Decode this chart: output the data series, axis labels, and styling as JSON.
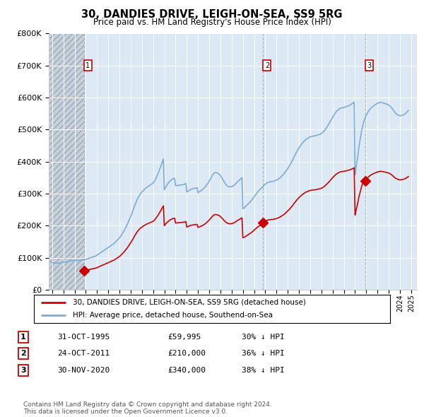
{
  "title": "30, DANDIES DRIVE, LEIGH-ON-SEA, SS9 5RG",
  "subtitle": "Price paid vs. HM Land Registry's House Price Index (HPI)",
  "legend_entry1": "30, DANDIES DRIVE, LEIGH-ON-SEA, SS9 5RG (detached house)",
  "legend_entry2": "HPI: Average price, detached house, Southend-on-Sea",
  "footnote": "Contains HM Land Registry data © Crown copyright and database right 2024.\nThis data is licensed under the Open Government Licence v3.0.",
  "sale_color": "#cc0000",
  "hpi_color": "#7dadd4",
  "vline_color": "#b0b0b0",
  "vline_color_sale": "#cc0000",
  "plot_bg": "#dce8f4",
  "hatch_bg": "#c8d0dc",
  "ylim": [
    0,
    800000
  ],
  "yticks": [
    0,
    100000,
    200000,
    300000,
    400000,
    500000,
    600000,
    700000,
    800000
  ],
  "xlim_start": 1992.7,
  "xlim_end": 2025.5,
  "sales": [
    {
      "year": 1995.83,
      "price": 59995,
      "label": "1"
    },
    {
      "year": 2011.81,
      "price": 210000,
      "label": "2"
    },
    {
      "year": 2020.92,
      "price": 340000,
      "label": "3"
    }
  ],
  "table_rows": [
    [
      "1",
      "31-OCT-1995",
      "£59,995",
      "30% ↓ HPI"
    ],
    [
      "2",
      "24-OCT-2011",
      "£210,000",
      "36% ↓ HPI"
    ],
    [
      "3",
      "30-NOV-2020",
      "£340,000",
      "38% ↓ HPI"
    ]
  ],
  "hpi_years": [
    1993.0,
    1993.08,
    1993.17,
    1993.25,
    1993.33,
    1993.42,
    1993.5,
    1993.58,
    1993.67,
    1993.75,
    1993.83,
    1993.92,
    1994.0,
    1994.08,
    1994.17,
    1994.25,
    1994.33,
    1994.42,
    1994.5,
    1994.58,
    1994.67,
    1994.75,
    1994.83,
    1994.92,
    1995.0,
    1995.08,
    1995.17,
    1995.25,
    1995.33,
    1995.42,
    1995.5,
    1995.58,
    1995.67,
    1995.75,
    1995.83,
    1995.92,
    1996.0,
    1996.08,
    1996.17,
    1996.25,
    1996.33,
    1996.42,
    1996.5,
    1996.58,
    1996.67,
    1996.75,
    1996.83,
    1996.92,
    1997.0,
    1997.08,
    1997.17,
    1997.25,
    1997.33,
    1997.42,
    1997.5,
    1997.58,
    1997.67,
    1997.75,
    1997.83,
    1997.92,
    1998.0,
    1998.08,
    1998.17,
    1998.25,
    1998.33,
    1998.42,
    1998.5,
    1998.58,
    1998.67,
    1998.75,
    1998.83,
    1998.92,
    1999.0,
    1999.08,
    1999.17,
    1999.25,
    1999.33,
    1999.42,
    1999.5,
    1999.58,
    1999.67,
    1999.75,
    1999.83,
    1999.92,
    2000.0,
    2000.08,
    2000.17,
    2000.25,
    2000.33,
    2000.42,
    2000.5,
    2000.58,
    2000.67,
    2000.75,
    2000.83,
    2000.92,
    2001.0,
    2001.08,
    2001.17,
    2001.25,
    2001.33,
    2001.42,
    2001.5,
    2001.58,
    2001.67,
    2001.75,
    2001.83,
    2001.92,
    2002.0,
    2002.08,
    2002.17,
    2002.25,
    2002.33,
    2002.42,
    2002.5,
    2002.58,
    2002.67,
    2002.75,
    2002.83,
    2002.92,
    2003.0,
    2003.08,
    2003.17,
    2003.25,
    2003.33,
    2003.42,
    2003.5,
    2003.58,
    2003.67,
    2003.75,
    2003.83,
    2003.92,
    2004.0,
    2004.08,
    2004.17,
    2004.25,
    2004.33,
    2004.42,
    2004.5,
    2004.58,
    2004.67,
    2004.75,
    2004.83,
    2004.92,
    2005.0,
    2005.08,
    2005.17,
    2005.25,
    2005.33,
    2005.42,
    2005.5,
    2005.58,
    2005.67,
    2005.75,
    2005.83,
    2005.92,
    2006.0,
    2006.08,
    2006.17,
    2006.25,
    2006.33,
    2006.42,
    2006.5,
    2006.58,
    2006.67,
    2006.75,
    2006.83,
    2006.92,
    2007.0,
    2007.08,
    2007.17,
    2007.25,
    2007.33,
    2007.42,
    2007.5,
    2007.58,
    2007.67,
    2007.75,
    2007.83,
    2007.92,
    2008.0,
    2008.08,
    2008.17,
    2008.25,
    2008.33,
    2008.42,
    2008.5,
    2008.58,
    2008.67,
    2008.75,
    2008.83,
    2008.92,
    2009.0,
    2009.08,
    2009.17,
    2009.25,
    2009.33,
    2009.42,
    2009.5,
    2009.58,
    2009.67,
    2009.75,
    2009.83,
    2009.92,
    2010.0,
    2010.08,
    2010.17,
    2010.25,
    2010.33,
    2010.42,
    2010.5,
    2010.58,
    2010.67,
    2010.75,
    2010.83,
    2010.92,
    2011.0,
    2011.08,
    2011.17,
    2011.25,
    2011.33,
    2011.42,
    2011.5,
    2011.58,
    2011.67,
    2011.75,
    2011.83,
    2011.92,
    2012.0,
    2012.08,
    2012.17,
    2012.25,
    2012.33,
    2012.42,
    2012.5,
    2012.58,
    2012.67,
    2012.75,
    2012.83,
    2012.92,
    2013.0,
    2013.08,
    2013.17,
    2013.25,
    2013.33,
    2013.42,
    2013.5,
    2013.58,
    2013.67,
    2013.75,
    2013.83,
    2013.92,
    2014.0,
    2014.08,
    2014.17,
    2014.25,
    2014.33,
    2014.42,
    2014.5,
    2014.58,
    2014.67,
    2014.75,
    2014.83,
    2014.92,
    2015.0,
    2015.08,
    2015.17,
    2015.25,
    2015.33,
    2015.42,
    2015.5,
    2015.58,
    2015.67,
    2015.75,
    2015.83,
    2015.92,
    2016.0,
    2016.08,
    2016.17,
    2016.25,
    2016.33,
    2016.42,
    2016.5,
    2016.58,
    2016.67,
    2016.75,
    2016.83,
    2016.92,
    2017.0,
    2017.08,
    2017.17,
    2017.25,
    2017.33,
    2017.42,
    2017.5,
    2017.58,
    2017.67,
    2017.75,
    2017.83,
    2017.92,
    2018.0,
    2018.08,
    2018.17,
    2018.25,
    2018.33,
    2018.42,
    2018.5,
    2018.58,
    2018.67,
    2018.75,
    2018.83,
    2018.92,
    2019.0,
    2019.08,
    2019.17,
    2019.25,
    2019.33,
    2019.42,
    2019.5,
    2019.58,
    2019.67,
    2019.75,
    2019.83,
    2019.92,
    2020.0,
    2020.08,
    2020.17,
    2020.25,
    2020.33,
    2020.42,
    2020.5,
    2020.58,
    2020.67,
    2020.75,
    2020.83,
    2020.92,
    2021.0,
    2021.08,
    2021.17,
    2021.25,
    2021.33,
    2021.42,
    2021.5,
    2021.58,
    2021.67,
    2021.75,
    2021.83,
    2021.92,
    2022.0,
    2022.08,
    2022.17,
    2022.25,
    2022.33,
    2022.42,
    2022.5,
    2022.58,
    2022.67,
    2022.75,
    2022.83,
    2022.92,
    2023.0,
    2023.08,
    2023.17,
    2023.25,
    2023.33,
    2023.42,
    2023.5,
    2023.58,
    2023.67,
    2023.75,
    2023.83,
    2023.92,
    2024.0,
    2024.08,
    2024.17,
    2024.25,
    2024.33,
    2024.42,
    2024.5,
    2024.58,
    2024.67,
    2024.75
  ],
  "hpi_values": [
    85000,
    84500,
    84000,
    83500,
    83500,
    83000,
    83000,
    83500,
    84000,
    84500,
    85000,
    85500,
    86000,
    86500,
    87000,
    87500,
    88000,
    88500,
    89000,
    89500,
    90000,
    90500,
    91000,
    91500,
    92000,
    91500,
    91000,
    91000,
    91500,
    92000,
    92000,
    92500,
    92500,
    93000,
    93500,
    94000,
    95000,
    96000,
    97000,
    98000,
    99000,
    100000,
    101000,
    102000,
    103000,
    104000,
    105000,
    106000,
    108000,
    110000,
    112000,
    114000,
    116000,
    118000,
    120000,
    122000,
    124000,
    126000,
    128000,
    130000,
    132000,
    134000,
    136000,
    138000,
    140000,
    142000,
    144000,
    147000,
    150000,
    153000,
    156000,
    159000,
    162000,
    166000,
    170000,
    175000,
    180000,
    185000,
    190000,
    196000,
    202000,
    208000,
    215000,
    222000,
    229000,
    236000,
    244000,
    252000,
    260000,
    268000,
    275000,
    282000,
    288000,
    293000,
    298000,
    302000,
    305000,
    308000,
    311000,
    314000,
    317000,
    319000,
    321000,
    323000,
    325000,
    327000,
    329000,
    331000,
    333000,
    337000,
    342000,
    348000,
    354000,
    361000,
    368000,
    376000,
    384000,
    392000,
    400000,
    408000,
    312000,
    318000,
    323000,
    328000,
    332000,
    336000,
    339000,
    342000,
    344000,
    346000,
    347000,
    348000,
    325000,
    325000,
    325500,
    326000,
    326500,
    327000,
    327000,
    327500,
    328000,
    329000,
    330000,
    332000,
    305000,
    307000,
    309000,
    311000,
    313000,
    314000,
    315000,
    316000,
    316500,
    317000,
    317500,
    318000,
    303000,
    305000,
    307000,
    309000,
    311000,
    313000,
    316000,
    319000,
    322000,
    326000,
    330000,
    334000,
    339000,
    344000,
    349000,
    355000,
    360000,
    363000,
    366000,
    366000,
    365000,
    364000,
    362000,
    360000,
    356000,
    352000,
    347000,
    342000,
    337000,
    332000,
    328000,
    325000,
    323000,
    322000,
    321000,
    321000,
    322000,
    323000,
    325000,
    327000,
    330000,
    333000,
    336000,
    339000,
    342000,
    345000,
    347000,
    350000,
    253000,
    255000,
    257000,
    260000,
    263000,
    266000,
    269000,
    272000,
    275000,
    278000,
    282000,
    286000,
    290000,
    294000,
    298000,
    302000,
    306000,
    309000,
    312000,
    315000,
    318000,
    321000,
    324000,
    327000,
    330000,
    332000,
    334000,
    335000,
    336000,
    337000,
    337000,
    338000,
    338000,
    339000,
    340000,
    341000,
    342000,
    344000,
    346000,
    348000,
    350000,
    353000,
    356000,
    359000,
    362000,
    366000,
    370000,
    374000,
    378000,
    383000,
    388000,
    393000,
    398000,
    404000,
    410000,
    416000,
    422000,
    428000,
    433000,
    438000,
    443000,
    447000,
    451000,
    455000,
    459000,
    462000,
    465000,
    468000,
    470000,
    472000,
    474000,
    476000,
    477000,
    478000,
    479000,
    479000,
    480000,
    480000,
    481000,
    482000,
    483000,
    484000,
    485000,
    486000,
    488000,
    490000,
    493000,
    496000,
    500000,
    504000,
    508000,
    513000,
    518000,
    523000,
    528000,
    533000,
    538000,
    543000,
    548000,
    552000,
    556000,
    559000,
    562000,
    564000,
    566000,
    567000,
    568000,
    568000,
    569000,
    570000,
    571000,
    572000,
    573000,
    574000,
    576000,
    577000,
    579000,
    581000,
    583000,
    586000,
    359000,
    380000,
    400000,
    420000,
    442000,
    462000,
    480000,
    496000,
    510000,
    522000,
    530000,
    538000,
    545000,
    551000,
    556000,
    560000,
    564000,
    567000,
    570000,
    572000,
    574000,
    576000,
    578000,
    580000,
    582000,
    583000,
    584000,
    585000,
    585000,
    584000,
    583000,
    582000,
    581000,
    580000,
    579000,
    578000,
    576000,
    574000,
    571000,
    568000,
    564000,
    560000,
    556000,
    552000,
    549000,
    547000,
    545000,
    544000,
    543000,
    543000,
    544000,
    545000,
    546000,
    548000,
    550000,
    553000,
    556000,
    559000
  ]
}
